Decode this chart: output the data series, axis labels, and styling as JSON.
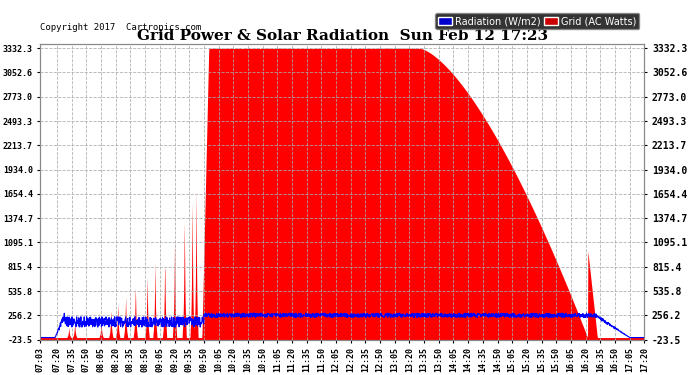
{
  "title": "Grid Power & Solar Radiation  Sun Feb 12 17:23",
  "copyright": "Copyright 2017  Cartronics.com",
  "bg_color": "#ffffff",
  "plot_bg_color": "#ffffff",
  "grid_color": "#aaaaaa",
  "title_color": "#000000",
  "ytick_labels": [
    "3332.3",
    "3052.6",
    "2773.0",
    "2493.3",
    "2213.7",
    "1934.0",
    "1654.4",
    "1374.7",
    "1095.1",
    "815.4",
    "535.8",
    "256.2",
    "-23.5"
  ],
  "ytick_values": [
    3332.3,
    3052.6,
    2773.0,
    2493.3,
    2213.7,
    1934.0,
    1654.4,
    1374.7,
    1095.1,
    815.4,
    535.8,
    256.2,
    -23.5
  ],
  "ymin": -23.5,
  "ymax": 3332.3,
  "radiation_line_color": "#0000ff",
  "grid_fill_color": "#ff0000",
  "xtick_labels": [
    "07:03",
    "07:20",
    "07:35",
    "07:50",
    "08:05",
    "08:20",
    "08:35",
    "08:50",
    "09:05",
    "09:20",
    "09:35",
    "09:50",
    "10:05",
    "10:20",
    "10:35",
    "10:50",
    "11:05",
    "11:20",
    "11:35",
    "11:50",
    "12:05",
    "12:20",
    "12:35",
    "12:50",
    "13:05",
    "13:20",
    "13:35",
    "13:50",
    "14:05",
    "14:20",
    "14:35",
    "14:50",
    "15:05",
    "15:20",
    "15:35",
    "15:50",
    "16:05",
    "16:20",
    "16:35",
    "16:50",
    "17:05",
    "17:20"
  ]
}
